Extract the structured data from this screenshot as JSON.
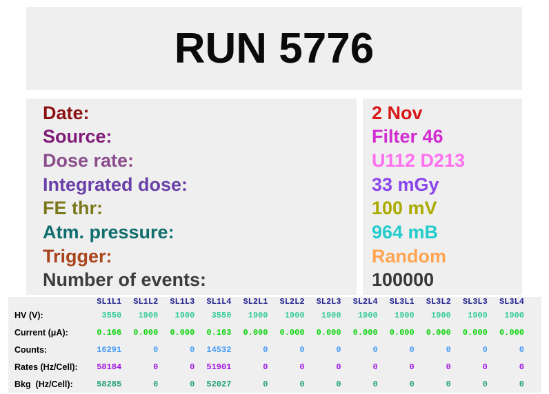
{
  "title": "RUN 5776",
  "colors": {
    "page_bg": "#ffffff",
    "panel_bg": "#efefef",
    "title_color": "#0a0a0a"
  },
  "info": {
    "rows": [
      {
        "label": "Date:",
        "value": "2 Nov",
        "label_color": "#8b1113",
        "value_color": "#d81717"
      },
      {
        "label": "Source:",
        "value": "Filter 46",
        "label_color": "#801a78",
        "value_color": "#d02cd0"
      },
      {
        "label": "Dose rate:",
        "value": "U112 D213",
        "label_color": "#8c4d8c",
        "value_color": "#ff6ff0"
      },
      {
        "label": "Integrated dose:",
        "value": "33 mGy",
        "label_color": "#6a40a8",
        "value_color": "#8a45ec"
      },
      {
        "label": "FE thr:",
        "value": "100 mV",
        "label_color": "#7c791d",
        "value_color": "#aaaa00"
      },
      {
        "label": "Atm. pressure:",
        "value": "964 mB",
        "label_color": "#106e6e",
        "value_color": "#25cccc"
      },
      {
        "label": "Trigger:",
        "value": "Random",
        "label_color": "#aa441c",
        "value_color": "#ffa552"
      },
      {
        "label": "Number of events:",
        "value": "100000",
        "label_color": "#3c3c3c",
        "value_color": "#383838"
      }
    ]
  },
  "table": {
    "header_color": "#22228e",
    "columns": [
      "SL1L1",
      "SL1L2",
      "SL1L3",
      "SL1L4",
      "SL2L1",
      "SL2L2",
      "SL2L3",
      "SL2L4",
      "SL3L1",
      "SL3L2",
      "SL3L3",
      "SL3L4"
    ],
    "rows": [
      {
        "label": "HV (V):",
        "color": "#36cb9b",
        "values": [
          "3550",
          "1900",
          "1900",
          "3550",
          "1900",
          "1900",
          "1900",
          "1900",
          "1900",
          "1900",
          "1900",
          "1900"
        ]
      },
      {
        "label": "Current (μA):",
        "color": "#0bd30b",
        "values": [
          "0.166",
          "0.000",
          "0.000",
          "0.163",
          "0.000",
          "0.000",
          "0.000",
          "0.000",
          "0.000",
          "0.000",
          "0.000",
          "0.000"
        ]
      },
      {
        "label": "Counts:",
        "color": "#459af8",
        "values": [
          "16291",
          "0",
          "0",
          "14532",
          "0",
          "0",
          "0",
          "0",
          "0",
          "0",
          "0",
          "0"
        ]
      },
      {
        "label": "Rates (Hz/Cell):",
        "color": "#a013e2",
        "values": [
          "58184",
          "0",
          "0",
          "51901",
          "0",
          "0",
          "0",
          "0",
          "0",
          "0",
          "0",
          "0"
        ]
      },
      {
        "label": "Bkg  (Hz/Cell):",
        "color": "#1fa078",
        "values": [
          "58285",
          "0",
          "0",
          "52027",
          "0",
          "0",
          "0",
          "0",
          "0",
          "0",
          "0",
          "0"
        ]
      }
    ]
  }
}
